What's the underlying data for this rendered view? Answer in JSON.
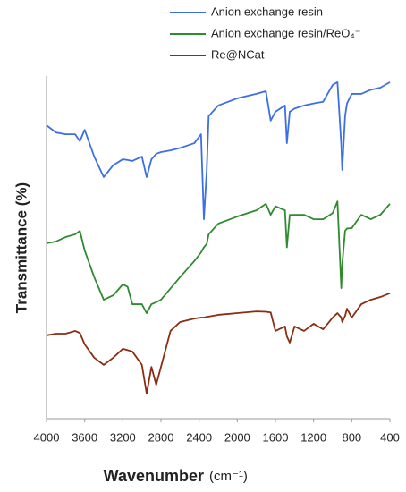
{
  "chart_data": {
    "type": "line",
    "x_label": "Wavenumber",
    "x_unit": "(cm⁻¹)",
    "y_label": "Transmittance (%)",
    "x": [
      4000,
      3900,
      3800,
      3700,
      3650,
      3600,
      3500,
      3400,
      3300,
      3200,
      3150,
      3100,
      3000,
      2950,
      2900,
      2850,
      2800,
      2700,
      2600,
      2450,
      2380,
      2350,
      2320,
      2300,
      2200,
      2000,
      1800,
      1700,
      1650,
      1600,
      1500,
      1480,
      1450,
      1400,
      1300,
      1200,
      1100,
      1000,
      950,
      910,
      900,
      870,
      850,
      800,
      700,
      600,
      500,
      400
    ],
    "xlim": [
      4000,
      400
    ],
    "xticks": [
      4000,
      3600,
      3200,
      2800,
      2400,
      2000,
      1600,
      1200,
      800,
      400
    ],
    "ylim": [
      0,
      100
    ],
    "series": [
      {
        "name": "Anion exchange resin",
        "color": "#3b6fe6",
        "values": [
          85.6,
          83.5,
          83,
          83,
          81,
          84.3,
          76.5,
          70.5,
          74,
          75.7,
          75.5,
          75.2,
          76.5,
          70.5,
          75.7,
          77.3,
          77.8,
          78.3,
          79,
          80.4,
          83,
          58.2,
          72.6,
          88.3,
          91.4,
          93.5,
          94.8,
          95.6,
          87,
          89.6,
          91.4,
          80.4,
          89.6,
          90.5,
          91.4,
          92,
          92.5,
          97.4,
          98.2,
          80,
          72.6,
          88.3,
          92,
          94.8,
          94.8,
          96,
          96.6,
          98.2
        ]
      },
      {
        "name": "Anion exchange resin/ReO₄⁻",
        "color": "#2e8b2e",
        "values": [
          51.2,
          51.7,
          53,
          53.8,
          54.8,
          49.1,
          41.3,
          34.7,
          36,
          39.2,
          38.5,
          33.4,
          33.4,
          30.8,
          33.4,
          34,
          34.7,
          38,
          41.3,
          46,
          48.5,
          50,
          51,
          53.8,
          56.9,
          59,
          60.8,
          62.7,
          59.5,
          62,
          60.8,
          50,
          59.5,
          59.5,
          59.5,
          58.2,
          58.2,
          60,
          63.4,
          38.1,
          45,
          54.8,
          55.5,
          55.6,
          59.5,
          58.2,
          59.5,
          62.7
        ]
      },
      {
        "name": "Re@NCat",
        "color": "#8b2d12",
        "values": [
          24.3,
          24.8,
          24.8,
          25.6,
          25,
          21.7,
          17.8,
          15.7,
          17.8,
          20.4,
          20,
          19.6,
          15.7,
          7.3,
          15.1,
          9.9,
          15.1,
          25.6,
          28.2,
          29.2,
          29.5,
          29.5,
          29.7,
          29.8,
          30.3,
          30.8,
          31.3,
          31.2,
          31,
          25.6,
          26.9,
          24,
          22.2,
          26.9,
          25.6,
          27.7,
          26.1,
          29.5,
          30.8,
          29.5,
          28.2,
          30,
          32.1,
          29.5,
          33.4,
          34.7,
          35.5,
          36.6
        ]
      }
    ]
  }
}
